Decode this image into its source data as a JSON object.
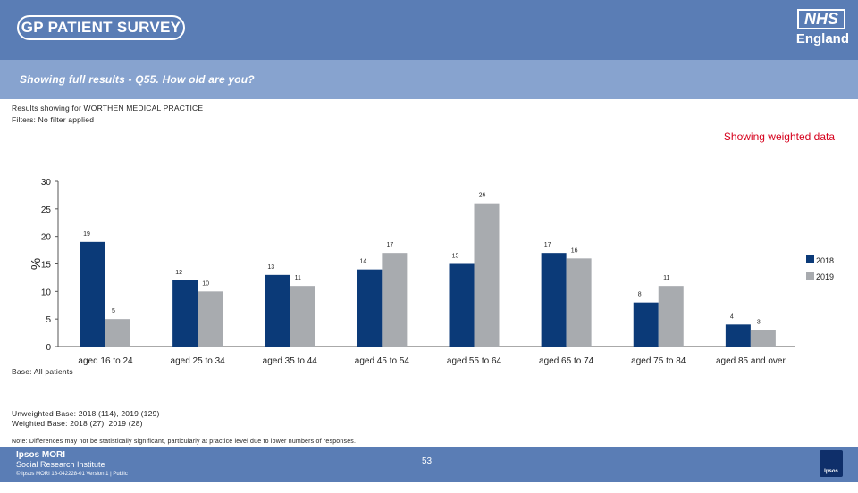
{
  "header": {
    "survey_logo": "GP PATIENT SURVEY",
    "nhs_logo": "NHS",
    "nhs_sub": "England"
  },
  "question_title": "Showing full results - Q55.  How old are you?",
  "results_for": "Results showing for WORTHEN MEDICAL PRACTICE",
  "filters": "Filters: No filter applied",
  "weighted_label": "Showing weighted data",
  "base_label": "Base: All patients",
  "unweighted_base": "Unweighted Base: 2018 (114), 2019 (129)",
  "weighted_base": "Weighted Base: 2018 (27), 2019 (28)",
  "note": "Note: Differences may not be statistically significant, particularly at practice level due to lower numbers of responses.",
  "footer": {
    "ipsos_name": "Ipsos MORI",
    "ipsos_sub": "Social Research Institute",
    "ipsos_ref": "© Ipsos MORI      18-042228-01 Version 1 | Public",
    "page_number": "53",
    "badge": "Ipsos"
  },
  "colors": {
    "series_2018": "#0b3a78",
    "series_2019": "#a8abaf",
    "header": "#5a7db5",
    "accent_red": "#d6001c"
  },
  "chart_data": {
    "type": "bar",
    "title": "",
    "xlabel": "",
    "ylabel": "%",
    "ylim": [
      0,
      30
    ],
    "yticks": [
      0,
      5,
      10,
      15,
      20,
      25,
      30
    ],
    "legend_position": "right",
    "categories": [
      "aged 16 to 24",
      "aged 25 to 34",
      "aged 35 to 44",
      "aged 45 to 54",
      "aged 55 to 64",
      "aged 65 to 74",
      "aged 75 to 84",
      "aged 85 and over"
    ],
    "series": [
      {
        "name": "2018",
        "values": [
          19,
          12,
          13,
          14,
          15,
          17,
          8,
          4
        ]
      },
      {
        "name": "2019",
        "values": [
          5,
          10,
          11,
          17,
          26,
          16,
          11,
          3
        ]
      }
    ]
  }
}
